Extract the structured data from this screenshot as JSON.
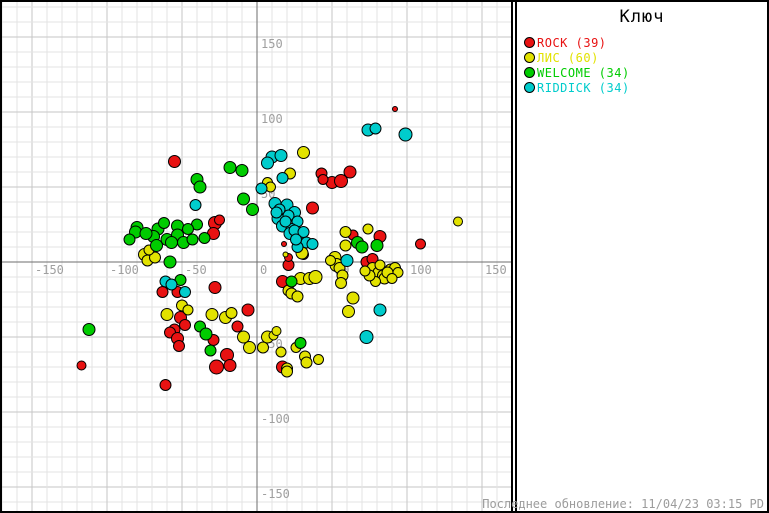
{
  "legend": {
    "title": "Ключ"
  },
  "status": {
    "last_update": "Последнее обновление: 11/04/23 03:15 PD"
  },
  "chart_data": {
    "type": "scatter",
    "title": "",
    "legend_title": "Ключ",
    "legend_position": "right-panel",
    "grid": {
      "visible": true,
      "minor_step": 10,
      "major_step": 50
    },
    "xlim": [
      -170,
      168
    ],
    "ylim": [
      -166,
      173
    ],
    "x_ticks": [
      -150,
      -100,
      -50,
      0,
      50,
      100,
      150
    ],
    "y_ticks": [
      150,
      100,
      50,
      -50,
      -100,
      -150
    ],
    "axis_color": "#6e6e6e",
    "major_grid_color": "#c6c6c6",
    "minor_grid_color": "#e3e3e3",
    "tick_label_color": "#9f9f9f",
    "series": [
      {
        "name": "ROCK",
        "count": 39,
        "legend_label": "ROCK (39)",
        "color": "#e81212",
        "points": [
          [
            -55,
            67,
            6
          ],
          [
            92,
            102,
            2.5
          ],
          [
            43,
            59,
            5.5
          ],
          [
            50,
            53,
            6
          ],
          [
            44,
            55,
            5
          ],
          [
            62,
            60,
            6
          ],
          [
            56,
            54,
            6.5
          ],
          [
            37,
            36,
            6
          ],
          [
            -28,
            26,
            6.5
          ],
          [
            -25,
            28,
            5
          ],
          [
            -29,
            19,
            6
          ],
          [
            18,
            12,
            2.5
          ],
          [
            31,
            5,
            5
          ],
          [
            21,
            -2,
            5.5
          ],
          [
            17,
            -13,
            6
          ],
          [
            -28,
            -17,
            6
          ],
          [
            -63,
            -20,
            5.5
          ],
          [
            -53,
            -20,
            5.5
          ],
          [
            -6,
            -32,
            6
          ],
          [
            -13,
            -43,
            5.5
          ],
          [
            -51,
            -37,
            6
          ],
          [
            -48,
            -42,
            5.5
          ],
          [
            -55,
            -45,
            5.5
          ],
          [
            -58,
            -47,
            5.5
          ],
          [
            -53,
            -51,
            6
          ],
          [
            -52,
            -56,
            5.5
          ],
          [
            -117,
            -69,
            4.5
          ],
          [
            -29,
            -52,
            5.5
          ],
          [
            -20,
            -62,
            6.5
          ],
          [
            -27,
            -70,
            7
          ],
          [
            -18,
            -69,
            6
          ],
          [
            -61,
            -82,
            5.5
          ],
          [
            17,
            -70,
            6
          ],
          [
            82,
            17,
            6
          ],
          [
            73,
            0,
            5.5
          ],
          [
            77,
            2,
            5.5
          ],
          [
            64,
            18,
            5
          ],
          [
            109,
            12,
            5
          ],
          [
            21,
            3,
            4
          ]
        ]
      },
      {
        "name": "ЛИС",
        "count": 60,
        "legend_label": "ЛИС (60)",
        "color": "#e2e200",
        "points": [
          [
            31,
            73,
            6
          ],
          [
            22,
            59,
            5.5
          ],
          [
            7,
            53,
            5
          ],
          [
            9,
            50,
            5
          ],
          [
            -75,
            5,
            6
          ],
          [
            -73,
            1,
            5.5
          ],
          [
            -68,
            3,
            5.5
          ],
          [
            -72,
            8,
            5
          ],
          [
            -50,
            -29,
            5.5
          ],
          [
            -46,
            -32,
            5
          ],
          [
            -60,
            -35,
            6
          ],
          [
            134,
            27,
            4.5
          ],
          [
            59,
            20,
            5.5
          ],
          [
            59,
            11,
            5.5
          ],
          [
            74,
            22,
            5
          ],
          [
            30,
            6,
            6
          ],
          [
            19,
            5,
            2.5
          ],
          [
            29,
            -11,
            6
          ],
          [
            35,
            -11,
            6
          ],
          [
            39,
            -10,
            6.5
          ],
          [
            21,
            -19,
            5.5
          ],
          [
            23,
            -21,
            5.5
          ],
          [
            27,
            -23,
            5.5
          ],
          [
            52,
            3,
            6
          ],
          [
            53,
            -2,
            6.5
          ],
          [
            49,
            1,
            5
          ],
          [
            -30,
            -35,
            6
          ],
          [
            -21,
            -37,
            6
          ],
          [
            -17,
            -34,
            5.5
          ],
          [
            -9,
            -50,
            6
          ],
          [
            7,
            -50,
            6
          ],
          [
            -5,
            -57,
            6
          ],
          [
            4,
            -57,
            5.5
          ],
          [
            20,
            -71,
            5.5
          ],
          [
            32,
            -63,
            5.5
          ],
          [
            33,
            -67,
            5.5
          ],
          [
            41,
            -65,
            5
          ],
          [
            77,
            -4,
            5.5
          ],
          [
            81,
            -7,
            5.5
          ],
          [
            84,
            -9,
            5.5
          ],
          [
            89,
            -5,
            5.5
          ],
          [
            92,
            -4,
            5.5
          ],
          [
            85,
            -11,
            5.5
          ],
          [
            94,
            -7,
            5
          ],
          [
            79,
            -13,
            5
          ],
          [
            87,
            -7,
            5.5
          ],
          [
            75,
            -9,
            5.5
          ],
          [
            82,
            -2,
            5
          ],
          [
            90,
            -11,
            5
          ],
          [
            72,
            -6,
            5
          ],
          [
            55,
            -4,
            5.5
          ],
          [
            57,
            -9,
            5.5
          ],
          [
            56,
            -14,
            5.5
          ],
          [
            64,
            -24,
            6
          ],
          [
            61,
            -33,
            6
          ],
          [
            20,
            -73,
            5.5
          ],
          [
            11,
            -49,
            4.5
          ],
          [
            13,
            -46,
            4.5
          ],
          [
            16,
            -60,
            5
          ],
          [
            26,
            -57,
            5
          ]
        ]
      },
      {
        "name": "WELCOME",
        "count": 34,
        "legend_label": "WELCOME (34)",
        "color": "#00cc00",
        "points": [
          [
            -40,
            55,
            6
          ],
          [
            -38,
            50,
            6
          ],
          [
            -80,
            23,
            6
          ],
          [
            -66,
            22,
            6
          ],
          [
            -53,
            24,
            6
          ],
          [
            -40,
            25,
            5.5
          ],
          [
            -81,
            20,
            6
          ],
          [
            -69,
            17,
            6
          ],
          [
            -67,
            11,
            6
          ],
          [
            -60,
            15,
            6
          ],
          [
            -53,
            18,
            6
          ],
          [
            -49,
            13,
            6
          ],
          [
            -43,
            15,
            5.5
          ],
          [
            -58,
            0,
            6
          ],
          [
            -51,
            -12,
            5.5
          ],
          [
            -112,
            -45,
            6
          ],
          [
            -18,
            63,
            6
          ],
          [
            -10,
            61,
            6
          ],
          [
            -9,
            42,
            6
          ],
          [
            -3,
            35,
            6
          ],
          [
            23,
            -13,
            5.5
          ],
          [
            -38,
            -43,
            5.5
          ],
          [
            -34,
            -48,
            6
          ],
          [
            -31,
            -59,
            5.5
          ],
          [
            29,
            -54,
            5.5
          ],
          [
            67,
            13,
            6
          ],
          [
            70,
            10,
            6
          ],
          [
            80,
            11,
            6
          ],
          [
            -74,
            19,
            6
          ],
          [
            -62,
            26,
            5.5
          ],
          [
            -57,
            13,
            6
          ],
          [
            -46,
            22,
            5.5
          ],
          [
            -35,
            16,
            5.5
          ],
          [
            -85,
            15,
            5.5
          ]
        ]
      },
      {
        "name": "RIDDICK",
        "count": 34,
        "legend_label": "RIDDICK (34)",
        "color": "#00cccc",
        "points": [
          [
            10,
            70,
            6
          ],
          [
            16,
            71,
            6
          ],
          [
            7,
            66,
            6
          ],
          [
            17,
            56,
            5.5
          ],
          [
            3,
            49,
            5.5
          ],
          [
            74,
            88,
            6
          ],
          [
            79,
            89,
            5.5
          ],
          [
            99,
            85,
            6.5
          ],
          [
            -41,
            38,
            5.5
          ],
          [
            12,
            39,
            6
          ],
          [
            20,
            38,
            6
          ],
          [
            25,
            33,
            6
          ],
          [
            14,
            29,
            6
          ],
          [
            21,
            31,
            5.5
          ],
          [
            27,
            27,
            5.5
          ],
          [
            17,
            24,
            6
          ],
          [
            23,
            22,
            5.5
          ],
          [
            22,
            19,
            6
          ],
          [
            29,
            16,
            6
          ],
          [
            33,
            13,
            5.5
          ],
          [
            37,
            12,
            5.5
          ],
          [
            27,
            10,
            5.5
          ],
          [
            15,
            35,
            5.5
          ],
          [
            19,
            27,
            5.5
          ],
          [
            25,
            21,
            5.5
          ],
          [
            31,
            20,
            5.5
          ],
          [
            13,
            33,
            5.5
          ],
          [
            26,
            15,
            5.5
          ],
          [
            -61,
            -13,
            5.5
          ],
          [
            -57,
            -15,
            5.5
          ],
          [
            -48,
            -20,
            5.5
          ],
          [
            60,
            1,
            6
          ],
          [
            82,
            -32,
            6
          ],
          [
            73,
            -50,
            6.5
          ]
        ]
      }
    ]
  }
}
